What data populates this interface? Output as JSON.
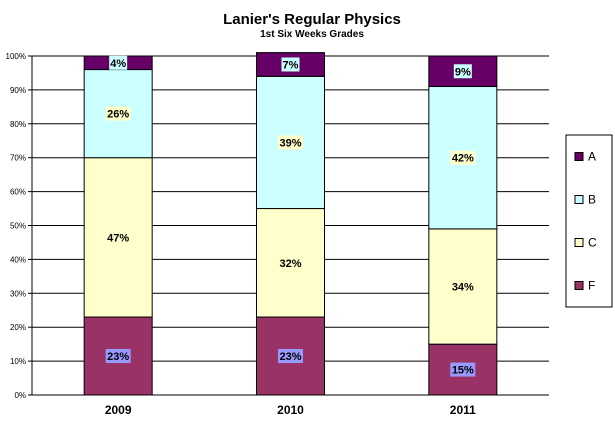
{
  "chart_data": {
    "type": "bar",
    "stacked": true,
    "title": "Lanier's Regular Physics",
    "subtitle": "1st Six Weeks Grades",
    "categories": [
      "2009",
      "2010",
      "2011"
    ],
    "series": [
      {
        "name": "F",
        "values": [
          23,
          23,
          15
        ],
        "labels": [
          "23%",
          "23%",
          "15%"
        ],
        "color": "#993366",
        "label_bg": "#9999ff"
      },
      {
        "name": "C",
        "values": [
          47,
          32,
          34
        ],
        "labels": [
          "47%",
          "32%",
          "34%"
        ],
        "color": "#ffffcc",
        "label_bg": "#ffffcc"
      },
      {
        "name": "B",
        "values": [
          26,
          39,
          42
        ],
        "labels": [
          "26%",
          "39%",
          "42%"
        ],
        "color": "#ccffff",
        "label_bg": "#ffffcc"
      },
      {
        "name": "A",
        "values": [
          4,
          7,
          9
        ],
        "labels": [
          "4%",
          "7%",
          "9%"
        ],
        "color": "#660066",
        "label_bg": "#ccffff"
      }
    ],
    "legend_order": [
      "A",
      "B",
      "C",
      "F"
    ],
    "legend_position": "right",
    "ylim": [
      0,
      100
    ],
    "yticks": [
      "0%",
      "10%",
      "20%",
      "30%",
      "40%",
      "50%",
      "60%",
      "70%",
      "80%",
      "90%",
      "100%"
    ],
    "grid": true
  }
}
